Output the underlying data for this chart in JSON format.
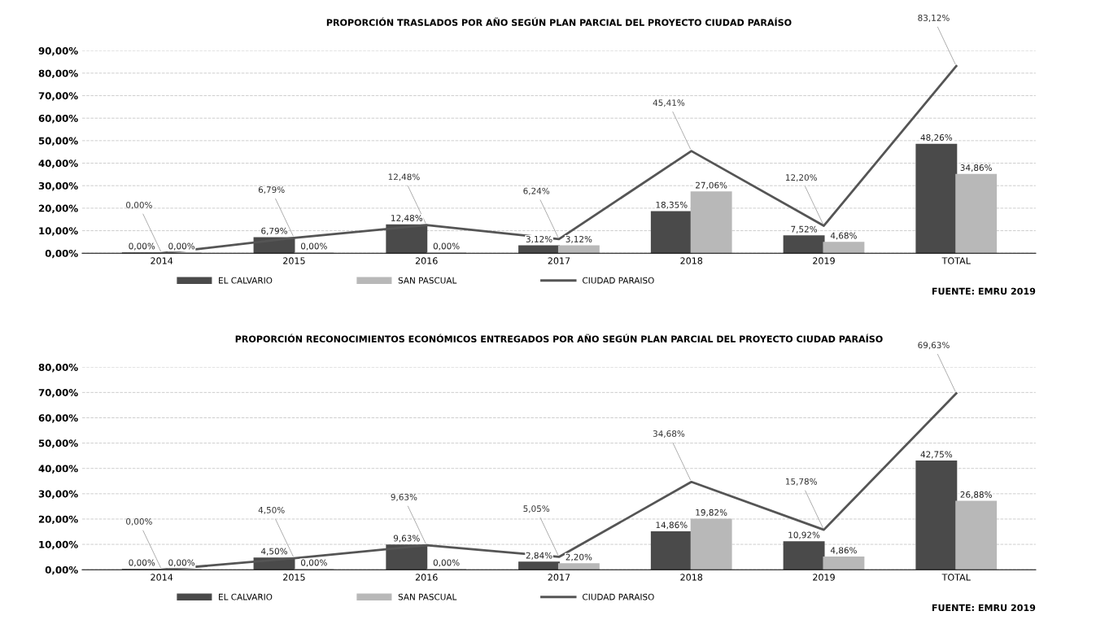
{
  "chart_data": [
    {
      "type": "bar",
      "title": "PROPORCIÓN TRASLADOS POR AÑO SEGÚN PLAN PARCIAL DEL PROYECTO CIUDAD PARAÍSO",
      "categories": [
        "2014",
        "2015",
        "2016",
        "2017",
        "2018",
        "2019",
        "TOTAL"
      ],
      "series": [
        {
          "name": "EL CALVARIO",
          "color": "#4a4a4a",
          "values": [
            0,
            6.79,
            12.48,
            3.12,
            18.35,
            7.52,
            48.26
          ],
          "value_labels": [
            "0,00%",
            "6,79%",
            "12,48%",
            "3,12%",
            "18,35%",
            "7,52%",
            "48,26%"
          ]
        },
        {
          "name": "SAN PASCUAL",
          "color": "#b8b8b8",
          "values": [
            0,
            0,
            0,
            3.12,
            27.06,
            4.68,
            34.86
          ],
          "value_labels": [
            "0,00%",
            "0,00%",
            "0,00%",
            "3,12%",
            "27,06%",
            "4,68%",
            "34,86%"
          ]
        },
        {
          "name": "CIUDAD PARAISO",
          "type": "line",
          "color": "#555555",
          "values": [
            0,
            6.79,
            12.48,
            6.24,
            45.41,
            12.2,
            83.12
          ],
          "value_labels": [
            "0,00%",
            "6,79%",
            "12,48%",
            "6,24%",
            "45,41%",
            "12,20%",
            "83,12%"
          ]
        }
      ],
      "ylim": [
        0,
        90
      ],
      "yticks": [
        {
          "value": 0,
          "label": "0,00%"
        },
        {
          "value": 10,
          "label": "10,00%"
        },
        {
          "value": 20,
          "label": "20,00%"
        },
        {
          "value": 30,
          "label": "30,00%"
        },
        {
          "value": 40,
          "label": "40,00%"
        },
        {
          "value": 50,
          "label": "50,00%"
        },
        {
          "value": 60,
          "label": "60,00%"
        },
        {
          "value": 70,
          "label": "70,00%"
        },
        {
          "value": 80,
          "label": "80,00%"
        },
        {
          "value": 90,
          "label": "90,00%"
        }
      ],
      "grid": "y",
      "legend": "bottom",
      "marker": "none",
      "annotations": [
        "FUENTE: EMRU 2019"
      ]
    },
    {
      "type": "bar",
      "title": "PROPORCIÓN RECONOCIMIENTOS ECONÓMICOS ENTREGADOS POR AÑO SEGÚN PLAN PARCIAL DEL PROYECTO CIUDAD PARAÍSO",
      "categories": [
        "2014",
        "2015",
        "2016",
        "2017",
        "2018",
        "2019",
        "TOTAL"
      ],
      "series": [
        {
          "name": "EL CALVARIO",
          "color": "#4a4a4a",
          "values": [
            0,
            4.5,
            9.63,
            2.84,
            14.86,
            10.92,
            42.75
          ],
          "value_labels": [
            "0,00%",
            "4,50%",
            "9,63%",
            "2,84%",
            "14,86%",
            "10,92%",
            "42,75%"
          ]
        },
        {
          "name": "SAN PASCUAL",
          "color": "#b8b8b8",
          "values": [
            0,
            0,
            0,
            2.2,
            19.82,
            4.86,
            26.88
          ],
          "value_labels": [
            "0,00%",
            "0,00%",
            "0,00%",
            "2,20%",
            "19,82%",
            "4,86%",
            "26,88%"
          ]
        },
        {
          "name": "CIUDAD PARAISO",
          "type": "line",
          "color": "#555555",
          "values": [
            0,
            4.5,
            9.63,
            5.05,
            34.68,
            15.78,
            69.63
          ],
          "value_labels": [
            "0,00%",
            "4,50%",
            "9,63%",
            "5,05%",
            "34,68%",
            "15,78%",
            "69,63%"
          ]
        }
      ],
      "ylim": [
        0,
        80
      ],
      "yticks": [
        {
          "value": 0,
          "label": "0,00%"
        },
        {
          "value": 10,
          "label": "10,00%"
        },
        {
          "value": 20,
          "label": "20,00%"
        },
        {
          "value": 30,
          "label": "30,00%"
        },
        {
          "value": 40,
          "label": "40,00%"
        },
        {
          "value": 50,
          "label": "50,00%"
        },
        {
          "value": 60,
          "label": "60,00%"
        },
        {
          "value": 70,
          "label": "70,00%"
        },
        {
          "value": 80,
          "label": "80,00%"
        }
      ],
      "grid": "y",
      "legend": "bottom",
      "marker": "none",
      "annotations": [
        "FUENTE: EMRU 2019"
      ]
    }
  ]
}
